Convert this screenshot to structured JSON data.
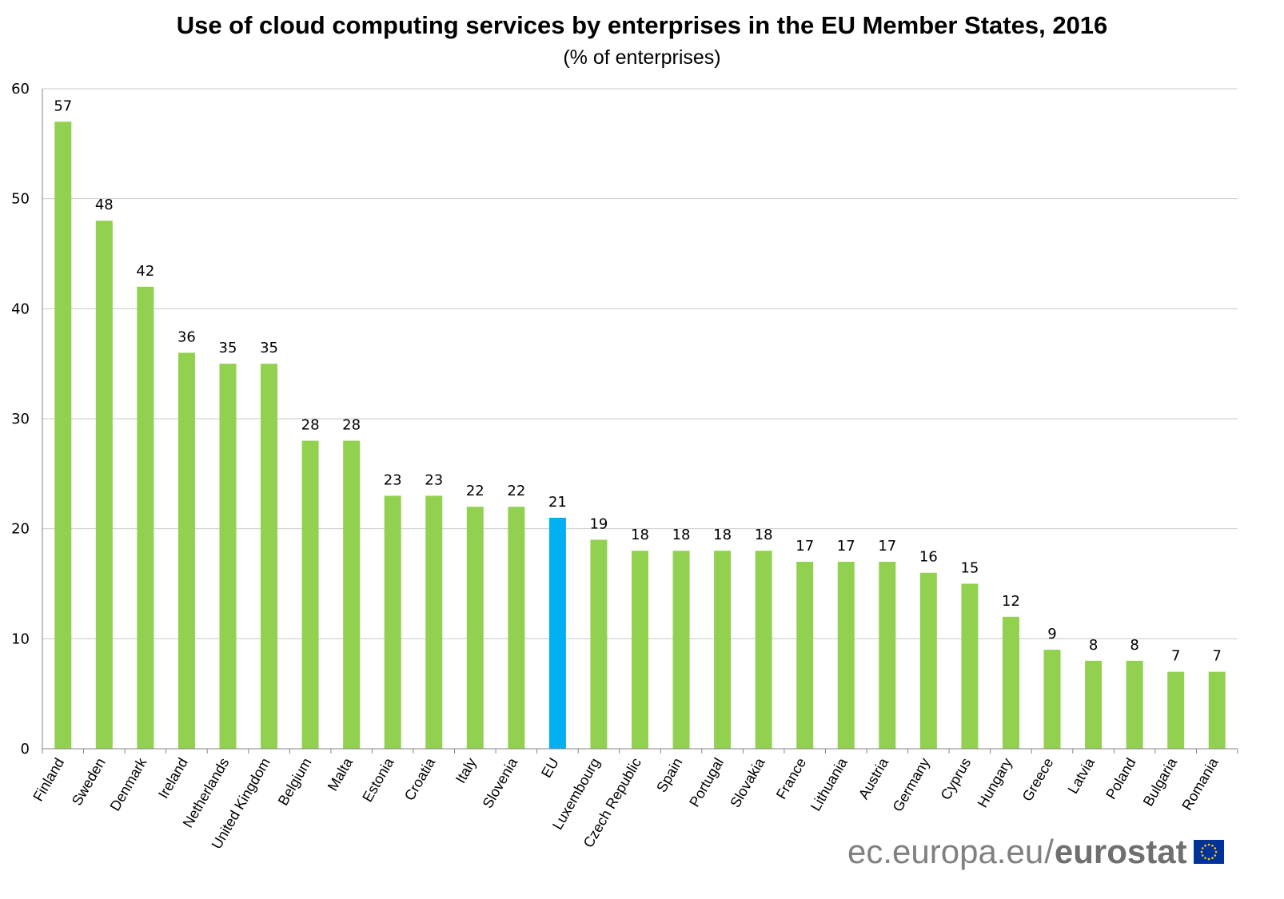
{
  "chart_data": {
    "type": "bar",
    "title": "Use of cloud computing services by enterprises in the EU Member States, 2016",
    "subtitle": "(% of enterprises)",
    "xlabel": "",
    "ylabel": "",
    "ylim": [
      0,
      60
    ],
    "yticks": [
      0,
      10,
      20,
      30,
      40,
      50,
      60
    ],
    "grid": true,
    "categories": [
      "Finland",
      "Sweden",
      "Denmark",
      "Ireland",
      "Netherlands",
      "United Kingdom",
      "Belgium",
      "Malta",
      "Estonia",
      "Croatia",
      "Italy",
      "Slovenia",
      "EU",
      "Luxembourg",
      "Czech Republic",
      "Spain",
      "Portugal",
      "Slovakia",
      "France",
      "Lithuania",
      "Austria",
      "Germany",
      "Cyprus",
      "Hungary",
      "Greece",
      "Latvia",
      "Poland",
      "Bulgaria",
      "Romania"
    ],
    "values": [
      57,
      48,
      42,
      36,
      35,
      35,
      28,
      28,
      23,
      23,
      22,
      22,
      21,
      19,
      18,
      18,
      18,
      18,
      17,
      17,
      17,
      16,
      15,
      12,
      9,
      8,
      8,
      7,
      7
    ],
    "highlight_category": "EU",
    "colors": {
      "bar": "#92d050",
      "highlight": "#00b0f0",
      "grid": "#c8c8c8",
      "axis": "#868686"
    }
  },
  "branding": {
    "site": "ec.europa.eu",
    "separator": "/",
    "brand": "eurostat",
    "logo_icon": "eu-flag-icon"
  }
}
